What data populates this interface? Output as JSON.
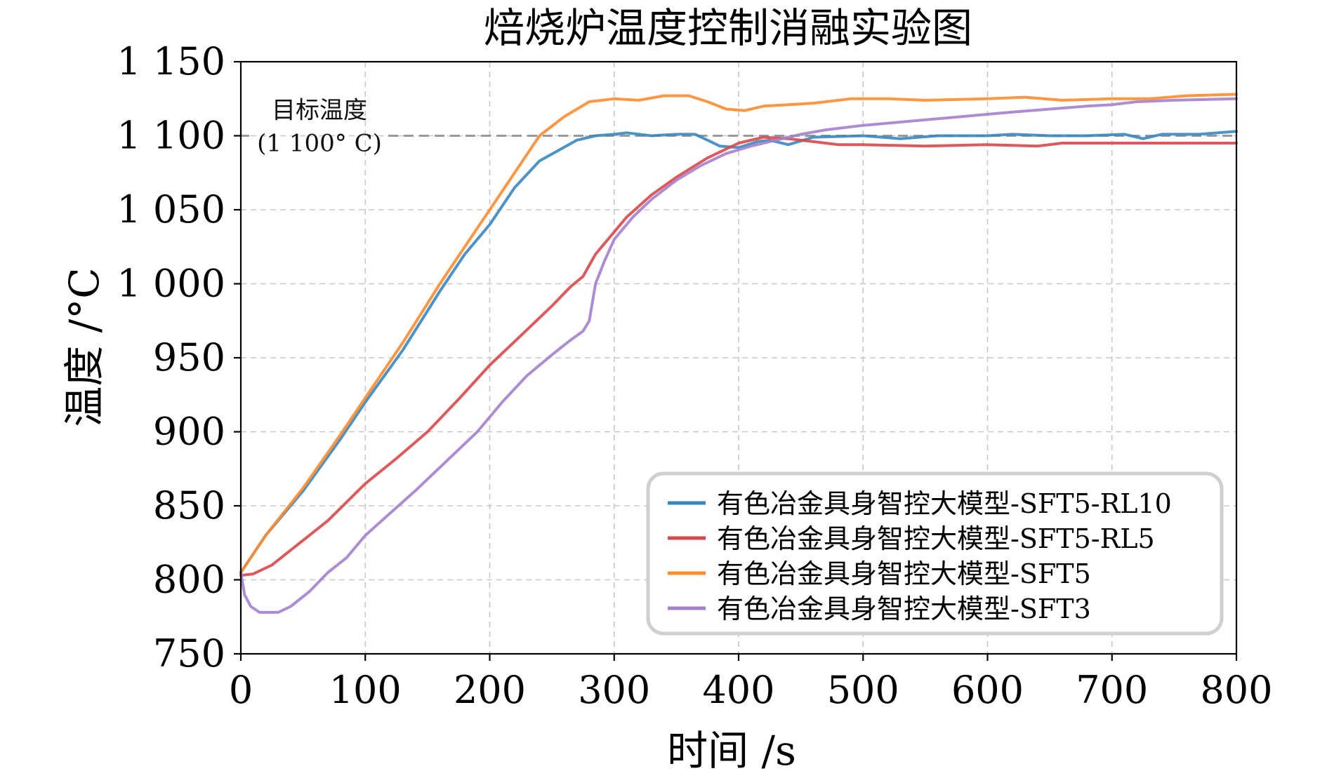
{
  "chart_data": {
    "type": "line",
    "title": "焙烧炉温度控制消融实验图",
    "xlabel": "时间 /s",
    "ylabel": "温度 /°C",
    "xlim": [
      0,
      800
    ],
    "ylim": [
      750,
      1150
    ],
    "xticks": [
      0,
      100,
      200,
      300,
      400,
      500,
      600,
      700,
      800
    ],
    "xtick_labels": [
      "0",
      "100",
      "200",
      "300",
      "400",
      "500",
      "600",
      "700",
      "800"
    ],
    "yticks": [
      750,
      800,
      850,
      900,
      950,
      1000,
      1050,
      1100,
      1150
    ],
    "ytick_labels": [
      "750",
      "800",
      "850",
      "900",
      "950",
      "1 000",
      "1 050",
      "1 100",
      "1 150"
    ],
    "grid": true,
    "legend_position": "lower-right",
    "target_line": {
      "value": 1100,
      "label_line1": "目标温度",
      "label_line2": "(1 100° C)",
      "color": "#999999"
    },
    "series": [
      {
        "name": "有色冶金具身智控大模型-SFT5-RL10",
        "color": "#3a87c0",
        "points": [
          [
            0,
            805
          ],
          [
            20,
            830
          ],
          [
            50,
            860
          ],
          [
            80,
            895
          ],
          [
            100,
            920
          ],
          [
            130,
            955
          ],
          [
            160,
            995
          ],
          [
            180,
            1020
          ],
          [
            200,
            1040
          ],
          [
            220,
            1065
          ],
          [
            240,
            1083
          ],
          [
            255,
            1090
          ],
          [
            270,
            1097
          ],
          [
            285,
            1100
          ],
          [
            300,
            1101
          ],
          [
            310,
            1102
          ],
          [
            330,
            1100
          ],
          [
            350,
            1101
          ],
          [
            365,
            1101
          ],
          [
            375,
            1097
          ],
          [
            385,
            1093
          ],
          [
            400,
            1092
          ],
          [
            415,
            1096
          ],
          [
            425,
            1097
          ],
          [
            440,
            1094
          ],
          [
            460,
            1099
          ],
          [
            500,
            1100
          ],
          [
            530,
            1098
          ],
          [
            560,
            1100
          ],
          [
            600,
            1100
          ],
          [
            620,
            1101
          ],
          [
            650,
            1100
          ],
          [
            680,
            1100
          ],
          [
            710,
            1101
          ],
          [
            725,
            1098
          ],
          [
            740,
            1101
          ],
          [
            770,
            1101
          ],
          [
            800,
            1103
          ]
        ]
      },
      {
        "name": "有色冶金具身智控大模型-SFT5-RL5",
        "color": "#d9474a",
        "points": [
          [
            0,
            803
          ],
          [
            10,
            804
          ],
          [
            25,
            810
          ],
          [
            40,
            820
          ],
          [
            70,
            840
          ],
          [
            100,
            865
          ],
          [
            125,
            882
          ],
          [
            150,
            900
          ],
          [
            175,
            922
          ],
          [
            200,
            945
          ],
          [
            225,
            965
          ],
          [
            250,
            985
          ],
          [
            265,
            998
          ],
          [
            275,
            1005
          ],
          [
            285,
            1020
          ],
          [
            295,
            1030
          ],
          [
            310,
            1045
          ],
          [
            330,
            1060
          ],
          [
            350,
            1072
          ],
          [
            375,
            1085
          ],
          [
            400,
            1095
          ],
          [
            420,
            1099
          ],
          [
            440,
            1098
          ],
          [
            460,
            1096
          ],
          [
            480,
            1094
          ],
          [
            500,
            1094
          ],
          [
            550,
            1093
          ],
          [
            600,
            1094
          ],
          [
            640,
            1093
          ],
          [
            660,
            1095
          ],
          [
            700,
            1095
          ],
          [
            800,
            1095
          ]
        ]
      },
      {
        "name": "有色冶金具身智控大模型-SFT5",
        "color": "#ff8c2e",
        "points": [
          [
            0,
            805
          ],
          [
            20,
            830
          ],
          [
            50,
            862
          ],
          [
            80,
            898
          ],
          [
            100,
            923
          ],
          [
            130,
            960
          ],
          [
            160,
            1000
          ],
          [
            180,
            1025
          ],
          [
            200,
            1050
          ],
          [
            220,
            1075
          ],
          [
            240,
            1100
          ],
          [
            260,
            1113
          ],
          [
            280,
            1123
          ],
          [
            300,
            1125
          ],
          [
            320,
            1124
          ],
          [
            340,
            1127
          ],
          [
            360,
            1127
          ],
          [
            375,
            1123
          ],
          [
            390,
            1118
          ],
          [
            405,
            1117
          ],
          [
            420,
            1120
          ],
          [
            440,
            1121
          ],
          [
            460,
            1122
          ],
          [
            490,
            1125
          ],
          [
            520,
            1125
          ],
          [
            550,
            1124
          ],
          [
            600,
            1125
          ],
          [
            630,
            1126
          ],
          [
            660,
            1124
          ],
          [
            700,
            1125
          ],
          [
            730,
            1125
          ],
          [
            760,
            1127
          ],
          [
            800,
            1128
          ]
        ]
      },
      {
        "name": "有色冶金具身智控大模型-SFT3",
        "color": "#a57fcc",
        "points": [
          [
            0,
            805
          ],
          [
            3,
            790
          ],
          [
            8,
            782
          ],
          [
            15,
            778
          ],
          [
            30,
            778
          ],
          [
            40,
            782
          ],
          [
            55,
            792
          ],
          [
            70,
            805
          ],
          [
            85,
            815
          ],
          [
            100,
            830
          ],
          [
            120,
            845
          ],
          [
            140,
            860
          ],
          [
            165,
            880
          ],
          [
            190,
            900
          ],
          [
            210,
            920
          ],
          [
            230,
            938
          ],
          [
            250,
            952
          ],
          [
            265,
            962
          ],
          [
            275,
            968
          ],
          [
            280,
            975
          ],
          [
            285,
            1000
          ],
          [
            292,
            1015
          ],
          [
            300,
            1030
          ],
          [
            315,
            1045
          ],
          [
            330,
            1057
          ],
          [
            350,
            1070
          ],
          [
            370,
            1080
          ],
          [
            390,
            1088
          ],
          [
            410,
            1093
          ],
          [
            430,
            1097
          ],
          [
            450,
            1101
          ],
          [
            470,
            1104
          ],
          [
            500,
            1107
          ],
          [
            540,
            1110
          ],
          [
            580,
            1113
          ],
          [
            620,
            1116
          ],
          [
            650,
            1118
          ],
          [
            680,
            1120
          ],
          [
            700,
            1121
          ],
          [
            720,
            1123
          ],
          [
            750,
            1124
          ],
          [
            800,
            1125
          ]
        ]
      }
    ]
  }
}
